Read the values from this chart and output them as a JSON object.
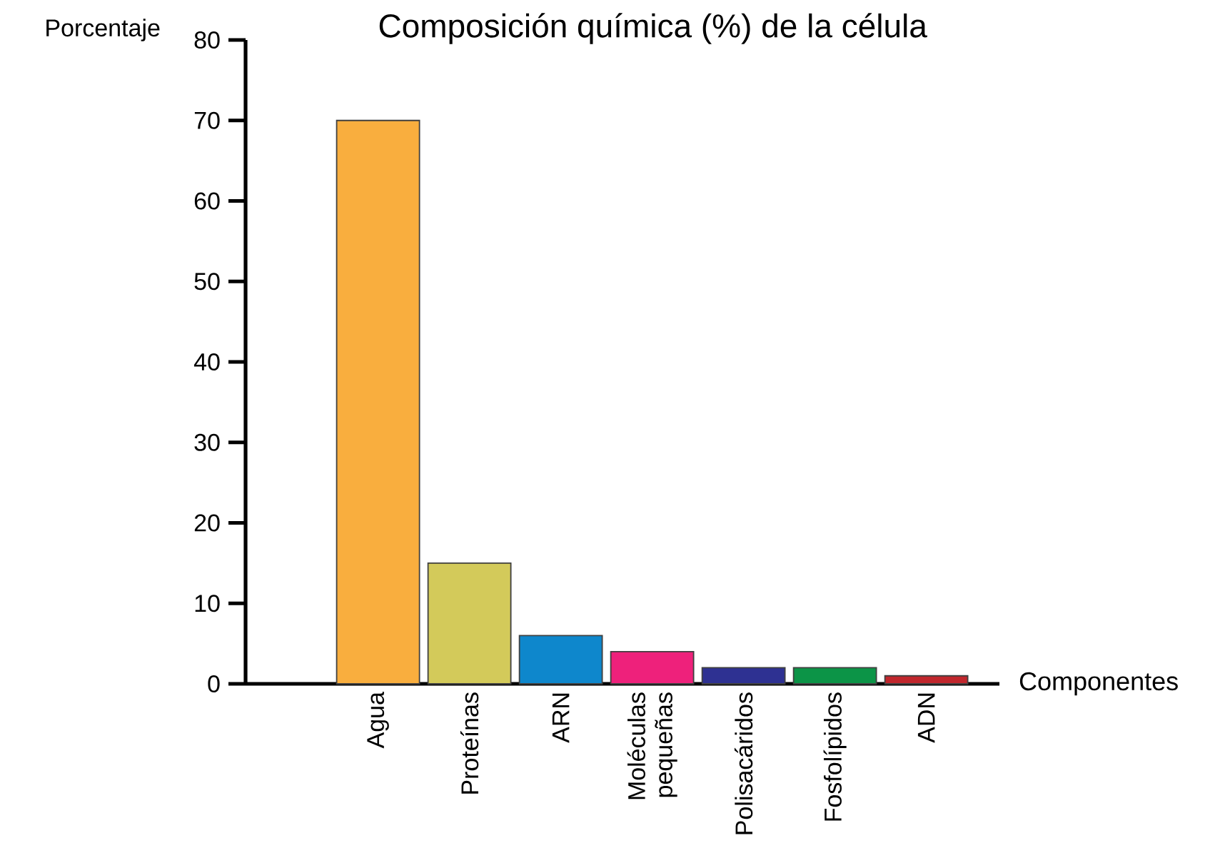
{
  "chart_data": {
    "type": "bar",
    "title": "Composición química (%) de la célula",
    "xlabel": "Componentes",
    "ylabel": "Porcentaje",
    "categories": [
      "Agua",
      "Proteínas",
      "ARN",
      "Moléculas pequeñas",
      "Polisacáridos",
      "Fosfolípidos",
      "ADN"
    ],
    "values": [
      70,
      15,
      6,
      4,
      2,
      2,
      1
    ],
    "colors": [
      "#f9ae3e",
      "#d3ca5a",
      "#0e87cc",
      "#ee217b",
      "#2e3192",
      "#0c9447",
      "#c1272d"
    ],
    "ylim": [
      0,
      80
    ],
    "yticks": [
      0,
      10,
      20,
      30,
      40,
      50,
      60,
      70,
      80
    ]
  }
}
